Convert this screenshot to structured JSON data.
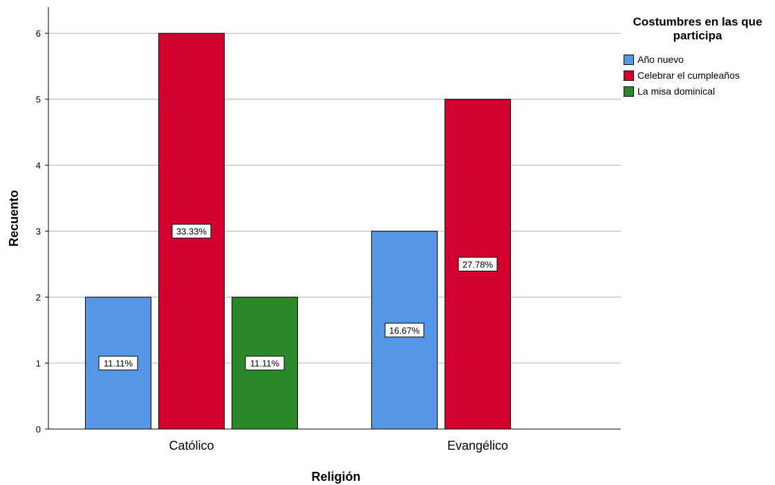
{
  "chart_data": {
    "type": "bar",
    "xlabel": "Religión",
    "ylabel": "Recuento",
    "ylim": [
      0,
      6.4
    ],
    "yticks": [
      0,
      1,
      2,
      3,
      4,
      5,
      6
    ],
    "grid": true,
    "legend_position": "top-right",
    "legend_title": "Costumbres en las que participa",
    "categories": [
      "Católico",
      "Evangélico"
    ],
    "series": [
      {
        "name": "Año nuevo",
        "color": "#5596E6",
        "values": [
          2,
          3
        ],
        "labels": [
          "11.11%",
          "16.67%"
        ]
      },
      {
        "name": "Celebrar el cumpleaños",
        "color": "#D2002E",
        "values": [
          6,
          5
        ],
        "labels": [
          "33.33%",
          "27.78%"
        ]
      },
      {
        "name": "La misa dominical",
        "color": "#2A8A2A",
        "values": [
          2,
          null
        ],
        "labels": [
          "11.11%",
          null
        ]
      }
    ]
  }
}
